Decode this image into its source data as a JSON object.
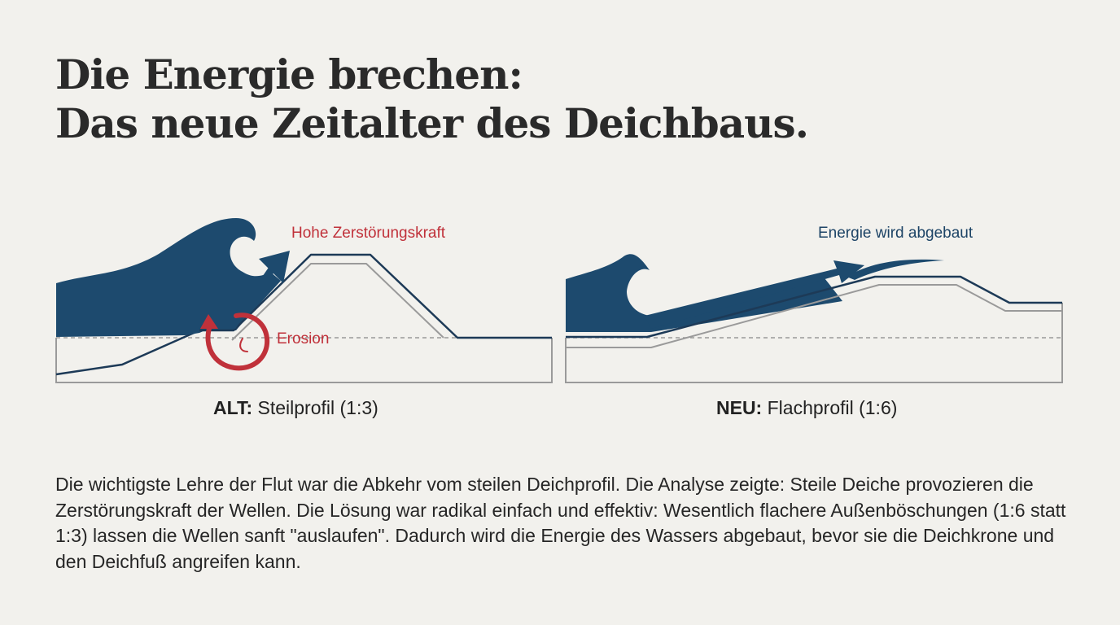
{
  "title": {
    "line1": "Die Energie brechen:",
    "line2": "Das neue Zeitalter des Deichbaus."
  },
  "old_profile": {
    "annotation_force": "Hohe Zerstörungskraft",
    "annotation_erosion": "Erosion",
    "caption_prefix": "ALT:",
    "caption_text": " Steilprofil (1:3)"
  },
  "new_profile": {
    "annotation_energy": "Energie wird abgebaut",
    "caption_prefix": "NEU:",
    "caption_text": " Flachprofil (1:6)"
  },
  "body": "Die wichtigste Lehre der Flut war die Abkehr vom steilen Deichprofil. Die Analyse zeigte: Steile Deiche provozieren die Zerstörungskraft der Wellen. Die Lösung war radikal einfach und effektiv: Wesentlich flachere Außenböschungen (1:6 statt 1:3) lassen die Wellen sanft \"auslaufen\". Dadurch wird die Energie des Wassers abgebaut, bevor sie die Deichkrone und den Deichfuß angreifen kann.",
  "colors": {
    "water": "#1d4a6e",
    "danger": "#c0313a",
    "outline": "#1d3a57",
    "inner": "#9a9a9a",
    "background": "#f2f1ed"
  }
}
